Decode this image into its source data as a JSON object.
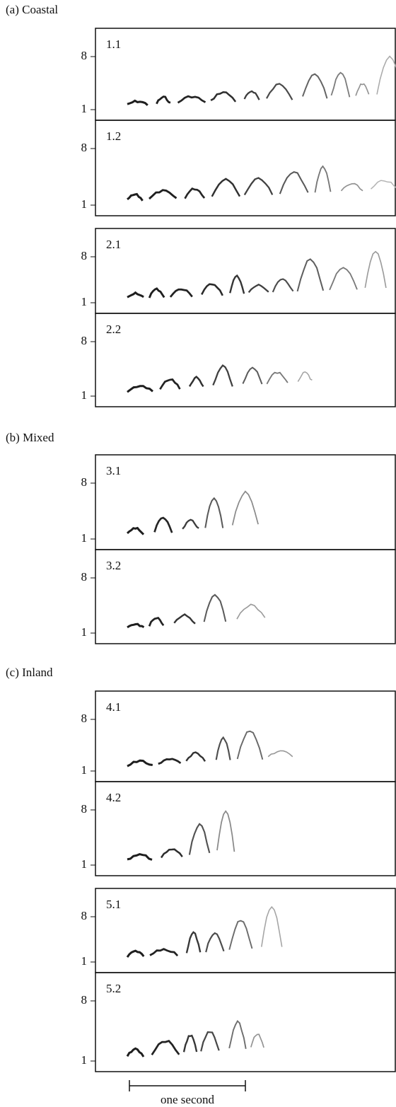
{
  "sections": [
    {
      "label": "(a)  Coastal",
      "panels": [
        {
          "label": "1.1",
          "yticks": [
            8,
            1
          ]
        },
        {
          "label": "1.2",
          "yticks": [
            8,
            1
          ]
        },
        {
          "label": "2.1",
          "yticks": [
            8,
            1
          ]
        },
        {
          "label": "2.2",
          "yticks": [
            8,
            1
          ]
        }
      ]
    },
    {
      "label": "(b)  Mixed",
      "panels": [
        {
          "label": "3.1",
          "yticks": [
            8,
            1
          ]
        },
        {
          "label": "3.2",
          "yticks": [
            8,
            1
          ]
        }
      ]
    },
    {
      "label": "(c)  Inland",
      "panels": [
        {
          "label": "4.1",
          "yticks": [
            8,
            1
          ]
        },
        {
          "label": "4.2",
          "yticks": [
            8,
            1
          ]
        },
        {
          "label": "5.1",
          "yticks": [
            8,
            1
          ]
        },
        {
          "label": "5.2",
          "yticks": [
            8,
            1
          ]
        }
      ]
    }
  ],
  "scale_bar": "one second"
}
